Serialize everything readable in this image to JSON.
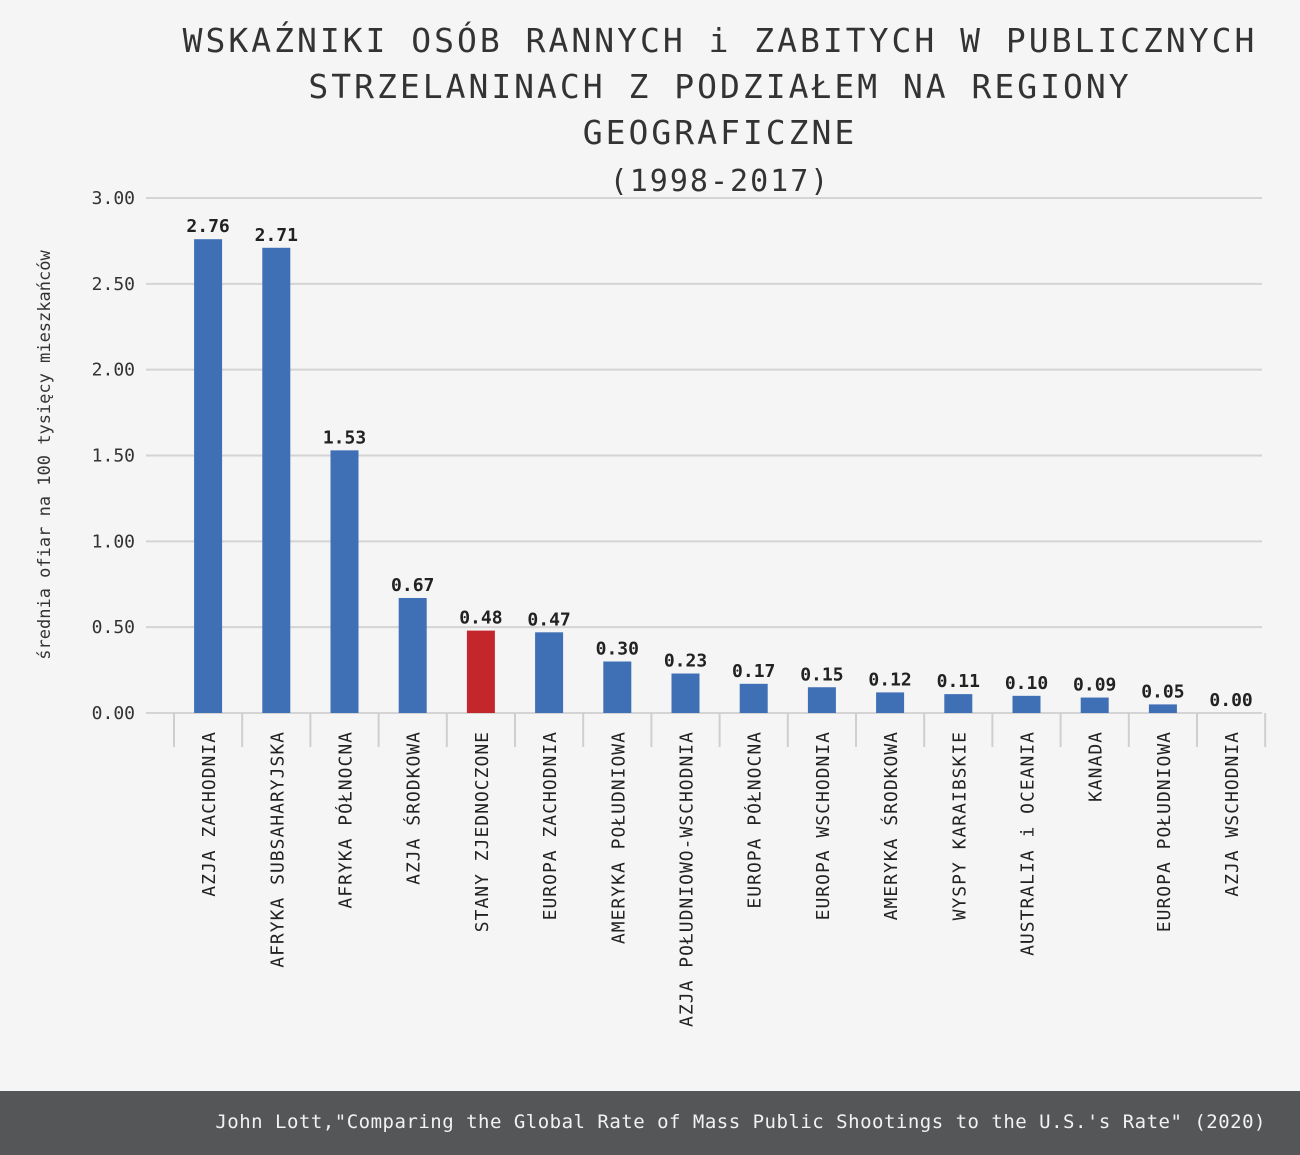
{
  "chart_data": {
    "type": "bar",
    "title_lines": [
      "WSKAŹNIKI OSÓB RANNYCH i ZABITYCH W PUBLICZNYCH",
      "STRZELANINACH Z PODZIAŁEM NA REGIONY GEOGRAFICZNE"
    ],
    "subtitle": "(1998-2017)",
    "ylabel": "średnia ofiar na 100 tysięcy mieszkańców",
    "xlabel": "",
    "ylim": [
      0,
      3.0
    ],
    "yticks": [
      "3.00",
      "2.50",
      "2.00",
      "1.50",
      "1.00",
      "0.50",
      "0.00"
    ],
    "ytick_values": [
      3.0,
      2.5,
      2.0,
      1.5,
      1.0,
      0.5,
      0.0
    ],
    "grid": true,
    "categories": [
      "AZJA ZACHODNIA",
      "AFRYKA SUBSAHARYJSKA",
      "AFRYKA PÓŁNOCNA",
      "AZJA ŚRODKOWA",
      "STANY ZJEDNOCZONE",
      "EUROPA ZACHODNIA",
      "AMERYKA POŁUDNIOWA",
      "AZJA POŁUDNIOWO-WSCHODNIA",
      "EUROPA PÓŁNOCNA",
      "EUROPA WSCHODNIA",
      "AMERYKA ŚRODKOWA",
      "WYSPY KARAIBSKIE",
      "AUSTRALIA i OCEANIA",
      "KANADA",
      "EUROPA POŁUDNIOWA",
      "AZJA WSCHODNIA"
    ],
    "values": [
      2.76,
      2.71,
      1.53,
      0.67,
      0.48,
      0.47,
      0.3,
      0.23,
      0.17,
      0.15,
      0.12,
      0.11,
      0.1,
      0.09,
      0.05,
      0.0
    ],
    "value_labels": [
      "2.76",
      "2.71",
      "1.53",
      "0.67",
      "0.48",
      "0.47",
      "0.30",
      "0.23",
      "0.17",
      "0.15",
      "0.12",
      "0.11",
      "0.10",
      "0.09",
      "0.05",
      "0.00"
    ],
    "highlight_index": 4,
    "colors": {
      "bar": "#3f6fb5",
      "highlight": "#c3272b",
      "grid": "#d4d4d4",
      "axis": "#cfcfcf"
    }
  },
  "footer": {
    "source": "John Lott,\"Comparing the Global Rate of Mass Public Shootings to the U.S.'s Rate\" (2020)"
  }
}
